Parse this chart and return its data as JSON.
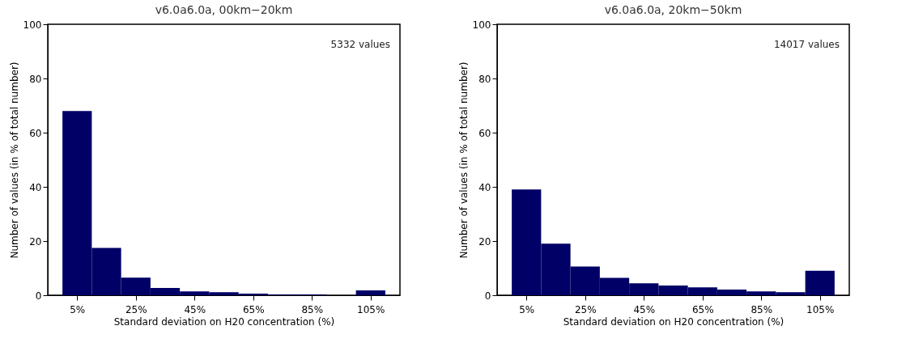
{
  "chart_data": [
    {
      "type": "histogram",
      "title": "v6.0a6.0a, 00km−20km",
      "xlabel": "Standard deviation on H20 concentration (%)",
      "ylabel": "Number of values (in % of total number)",
      "annotations": [
        "5332 values"
      ],
      "bins": [
        0,
        10,
        20,
        30,
        40,
        50,
        60,
        70,
        80,
        90,
        100,
        110
      ],
      "values": [
        68,
        17.5,
        6.5,
        2.7,
        1.4,
        1.1,
        0.6,
        0.3,
        0.3,
        null,
        1.8
      ],
      "color": "#000066",
      "xlim": [
        -5,
        115
      ],
      "xticks": [
        {
          "value": 5,
          "label": "5%"
        },
        {
          "value": 25,
          "label": "25%"
        },
        {
          "value": 45,
          "label": "45%"
        },
        {
          "value": 65,
          "label": "65%"
        },
        {
          "value": 85,
          "label": "85%"
        },
        {
          "value": 105,
          "label": "105%"
        }
      ],
      "ylim": [
        0,
        100
      ],
      "yticks": [
        0,
        20,
        40,
        60,
        80,
        100
      ],
      "grid": false
    },
    {
      "type": "histogram",
      "title": "v6.0a6.0a, 20km−50km",
      "xlabel": "Standard deviation on H20 concentration (%)",
      "ylabel": "Number of values (in % of total number)",
      "annotations": [
        "14017 values"
      ],
      "bins": [
        0,
        10,
        20,
        30,
        40,
        50,
        60,
        70,
        80,
        90,
        100,
        110
      ],
      "values": [
        39,
        19,
        10.6,
        6.4,
        4.4,
        3.6,
        2.9,
        2.1,
        1.4,
        1.1,
        9
      ],
      "color": "#000066",
      "xlim": [
        -5,
        115
      ],
      "xticks": [
        {
          "value": 5,
          "label": "5%"
        },
        {
          "value": 25,
          "label": "25%"
        },
        {
          "value": 45,
          "label": "45%"
        },
        {
          "value": 65,
          "label": "65%"
        },
        {
          "value": 85,
          "label": "85%"
        },
        {
          "value": 105,
          "label": "105%"
        }
      ],
      "ylim": [
        0,
        100
      ],
      "yticks": [
        0,
        20,
        40,
        60,
        80,
        100
      ],
      "grid": false
    }
  ]
}
